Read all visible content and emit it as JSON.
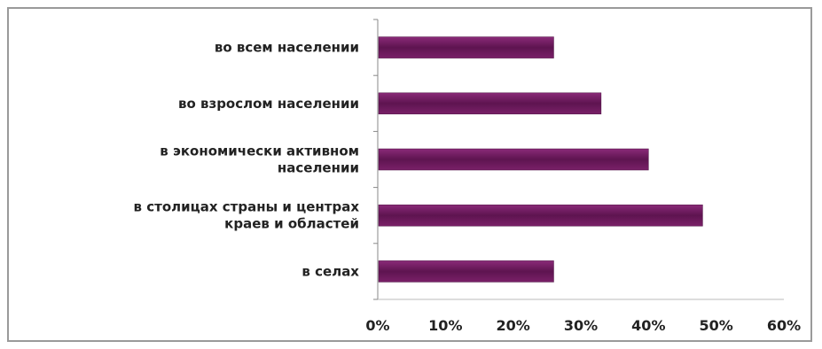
{
  "chart_data": {
    "type": "bar",
    "orientation": "horizontal",
    "categories": [
      [
        "во всем населении"
      ],
      [
        "во взрослом населении"
      ],
      [
        "в экономически активном",
        "населении"
      ],
      [
        "в столицах страны и центрах",
        "краев и областей"
      ],
      [
        "в селах"
      ]
    ],
    "values": [
      26,
      33,
      40,
      48,
      26
    ],
    "xlim": [
      0,
      60
    ],
    "xticks": [
      0,
      10,
      20,
      30,
      40,
      50,
      60
    ],
    "xtick_labels": [
      "0%",
      "10%",
      "20%",
      "30%",
      "40%",
      "50%",
      "60%"
    ],
    "bar_color": "#6a1a5a",
    "grid": false,
    "legend": "none",
    "title": "",
    "xlabel": "",
    "ylabel": ""
  }
}
